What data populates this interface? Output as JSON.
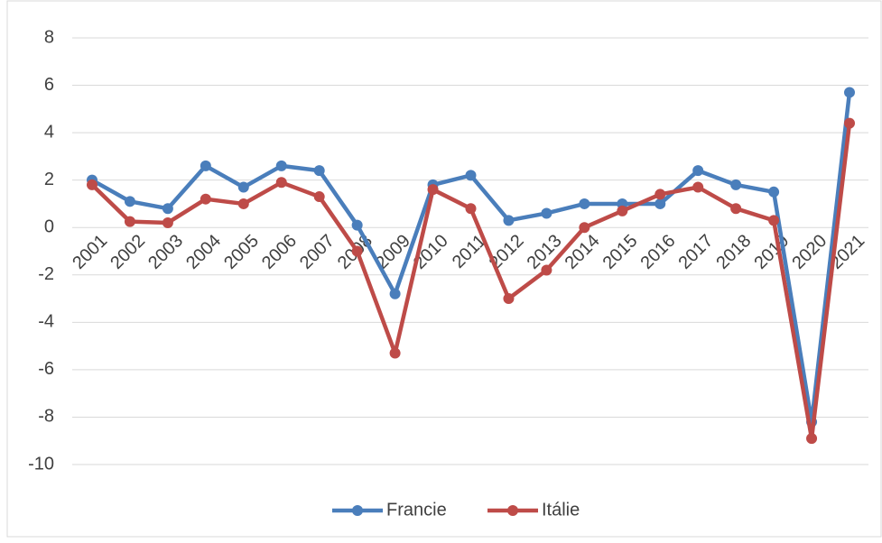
{
  "chart_data": {
    "type": "line",
    "categories": [
      "2001",
      "2002",
      "2003",
      "2004",
      "2005",
      "2006",
      "2007",
      "2008",
      "2009",
      "2010",
      "2011",
      "2012",
      "2013",
      "2014",
      "2015",
      "2016",
      "2017",
      "2018",
      "2019",
      "2020",
      "2021"
    ],
    "series": [
      {
        "name": "Francie",
        "color": "#4a7ebb",
        "values": [
          2.0,
          1.1,
          0.8,
          2.6,
          1.7,
          2.6,
          2.4,
          0.1,
          -2.8,
          1.8,
          2.2,
          0.3,
          0.6,
          1.0,
          1.0,
          1.0,
          2.4,
          1.8,
          1.5,
          -8.2,
          5.7
        ]
      },
      {
        "name": "Itálie",
        "color": "#be4b48",
        "values": [
          1.8,
          0.25,
          0.2,
          1.2,
          1.0,
          1.9,
          1.3,
          -1.0,
          -5.3,
          1.6,
          0.8,
          -3.0,
          -1.8,
          0.0,
          0.7,
          1.4,
          1.7,
          0.8,
          0.3,
          -8.9,
          4.4
        ]
      }
    ],
    "ylim": [
      -10,
      8
    ],
    "yticks": [
      -10,
      -8,
      -6,
      -4,
      -2,
      0,
      2,
      4,
      6,
      8
    ],
    "grid": true,
    "legend": "bottom"
  }
}
